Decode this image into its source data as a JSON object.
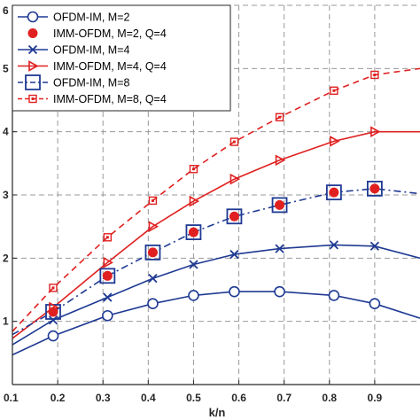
{
  "chart_data": {
    "type": "line",
    "title": "",
    "xlabel": "k/n",
    "ylabel": "",
    "xlim": [
      0.1,
      1.0
    ],
    "ylim": [
      0,
      6
    ],
    "xticks": [
      "0.1",
      "0.2",
      "0.3",
      "0.4",
      "0.5",
      "0.6",
      "0.7",
      "0.8",
      "0.9"
    ],
    "yticks": [
      "1",
      "2",
      "3",
      "4",
      "5",
      "6"
    ],
    "grid": true,
    "legend_position": "top-left",
    "colors": {
      "blue": "#1f3a93",
      "red": "#e02020",
      "grid": "#999999",
      "axis": "#262626"
    },
    "series": [
      {
        "name": "OFDM-IM, M=2",
        "color": "#1f3a93",
        "dash": "solid",
        "marker": "circle-open",
        "x": [
          0.1,
          0.19,
          0.31,
          0.41,
          0.5,
          0.59,
          0.69,
          0.81,
          0.9,
          1.0
        ],
        "y": [
          0.47,
          0.77,
          1.09,
          1.28,
          1.41,
          1.47,
          1.47,
          1.41,
          1.28,
          1.05
        ],
        "marker_x": [
          0.19,
          0.31,
          0.41,
          0.5,
          0.59,
          0.69,
          0.81,
          0.9
        ]
      },
      {
        "name": "IMM-OFDM, M=2, Q=4",
        "color": "#e02020",
        "dash": "none",
        "marker": "circle-filled",
        "x": [
          0.19,
          0.31,
          0.41,
          0.5,
          0.59,
          0.69,
          0.81,
          0.9
        ],
        "y": [
          1.15,
          1.72,
          2.09,
          2.41,
          2.66,
          2.84,
          3.04,
          3.1
        ],
        "marker_x": [
          0.19,
          0.31,
          0.41,
          0.5,
          0.59,
          0.69,
          0.81,
          0.9
        ]
      },
      {
        "name": "OFDM-IM, M=4",
        "color": "#1f3a93",
        "dash": "solid",
        "marker": "x",
        "x": [
          0.1,
          0.19,
          0.31,
          0.41,
          0.5,
          0.59,
          0.69,
          0.81,
          0.9,
          1.0
        ],
        "y": [
          0.63,
          1.02,
          1.38,
          1.68,
          1.9,
          2.06,
          2.15,
          2.21,
          2.19,
          2.0
        ],
        "marker_x": [
          0.19,
          0.31,
          0.41,
          0.5,
          0.59,
          0.69,
          0.81,
          0.9
        ]
      },
      {
        "name": "IMM-OFDM, M=4, Q=4",
        "color": "#e02020",
        "dash": "solid",
        "marker": "triangle-right",
        "x": [
          0.1,
          0.19,
          0.31,
          0.41,
          0.5,
          0.59,
          0.69,
          0.81,
          0.9,
          1.0
        ],
        "y": [
          0.73,
          1.22,
          1.93,
          2.5,
          2.9,
          3.25,
          3.55,
          3.85,
          4.0,
          4.0
        ],
        "marker_x": [
          0.19,
          0.31,
          0.41,
          0.5,
          0.59,
          0.69,
          0.81,
          0.9
        ]
      },
      {
        "name": "OFDM-IM, M=8",
        "color": "#1f3a93",
        "dash": "dashdot",
        "marker": "square-open",
        "x": [
          0.1,
          0.19,
          0.31,
          0.41,
          0.5,
          0.59,
          0.69,
          0.81,
          0.9,
          1.0
        ],
        "y": [
          0.79,
          1.15,
          1.72,
          2.09,
          2.41,
          2.66,
          2.84,
          3.04,
          3.1,
          3.02
        ],
        "marker_x": [
          0.19,
          0.31,
          0.41,
          0.5,
          0.59,
          0.69,
          0.81,
          0.9
        ]
      },
      {
        "name": "IMM-OFDM, M=8, Q=4",
        "color": "#e02020",
        "dash": "dashed",
        "marker": "square-dot",
        "x": [
          0.1,
          0.19,
          0.31,
          0.41,
          0.5,
          0.59,
          0.69,
          0.81,
          0.9,
          1.0
        ],
        "y": [
          0.84,
          1.53,
          2.33,
          2.91,
          3.41,
          3.84,
          4.23,
          4.65,
          4.9,
          5.0
        ],
        "marker_x": [
          0.19,
          0.31,
          0.41,
          0.5,
          0.59,
          0.69,
          0.81,
          0.9
        ]
      }
    ]
  }
}
